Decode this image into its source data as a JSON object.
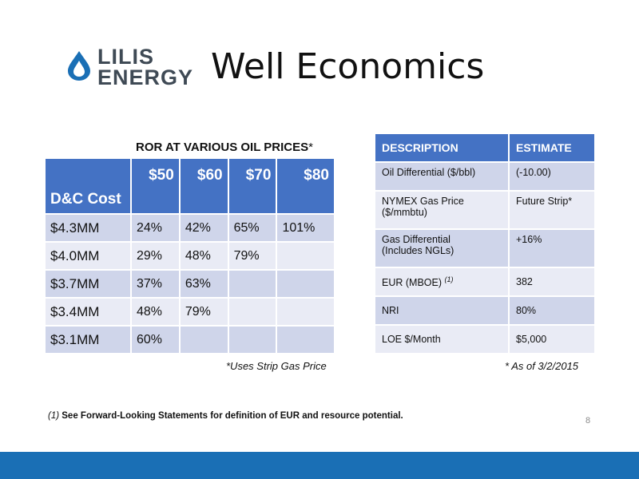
{
  "logo": {
    "line1": "LILIS",
    "line2": "ENERGY",
    "icon": "oil-drop-icon",
    "brand_color": "#1a6fb5"
  },
  "title": "Well Economics",
  "ror": {
    "caption": "ROR AT VARIOUS OIL PRICES",
    "caption_mark": "*",
    "header": {
      "cost_label": "D&C Cost",
      "prices": [
        "$50",
        "$60",
        "$70",
        "$80"
      ]
    },
    "rows": [
      {
        "cost": "$4.3MM",
        "values": [
          "24%",
          "42%",
          "65%",
          "101%"
        ]
      },
      {
        "cost": "$4.0MM",
        "values": [
          "29%",
          "48%",
          "79%",
          ""
        ]
      },
      {
        "cost": "$3.7MM",
        "values": [
          "37%",
          "63%",
          "",
          ""
        ]
      },
      {
        "cost": "$3.4MM",
        "values": [
          "48%",
          "79%",
          "",
          ""
        ]
      },
      {
        "cost": "$3.1MM",
        "values": [
          "60%",
          "",
          "",
          ""
        ]
      }
    ],
    "note": "*Uses Strip Gas Price"
  },
  "estimates": {
    "header": {
      "description": "DESCRIPTION",
      "estimate": "ESTIMATE"
    },
    "rows": [
      {
        "description": "Oil Differential ($/bbl)",
        "estimate": "(-10.00)"
      },
      {
        "description_line1": "NYMEX Gas Price",
        "description_line2": "($/mmbtu)",
        "estimate": "Future Strip*"
      },
      {
        "description_line1": "Gas Differential",
        "description_line2": "(Includes NGLs)",
        "estimate": "+16%"
      },
      {
        "description": "EUR (MBOE)",
        "footnote_mark": "(1)",
        "estimate": "382"
      },
      {
        "description": "NRI",
        "estimate": "80%"
      },
      {
        "description": "LOE $/Month",
        "estimate": "$5,000"
      }
    ],
    "note": "* As of 3/2/2015"
  },
  "footnote": {
    "mark": "(1)",
    "text": "See Forward-Looking Statements for definition of EUR and resource potential."
  },
  "page_number": "8",
  "colors": {
    "header_blue": "#4472c4",
    "row_dark": "#cfd5ea",
    "row_light": "#e9ebf5",
    "footer_bar": "#1a6fb5"
  }
}
